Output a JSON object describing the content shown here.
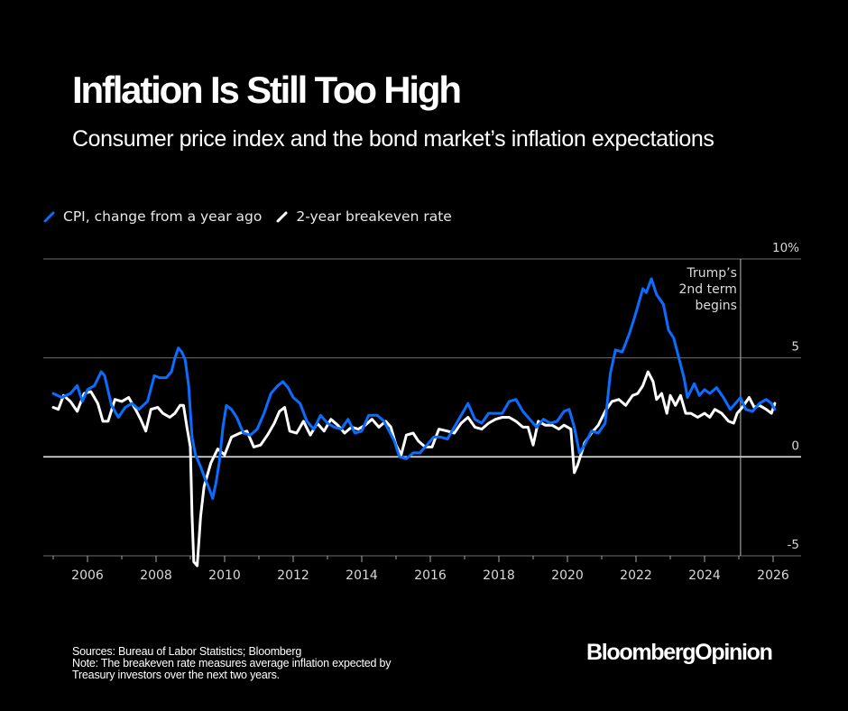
{
  "header": {
    "title": "Inflation Is Still Too High",
    "subtitle": "Consumer price index and the bond market’s inflation expectations"
  },
  "legend": [
    {
      "label": "CPI, change from a year ago",
      "color": "#0a6dff",
      "icon": "blue-line-swatch"
    },
    {
      "label": "2-year breakeven rate",
      "color": "#ffffff",
      "icon": "white-line-swatch"
    }
  ],
  "footer": {
    "sources": "Sources: Bureau of Labor Statistics; Bloomberg",
    "note_line1": "Note: The breakeven rate measures average inflation expected by",
    "note_line2": "Treasury investors over the next two years.",
    "brand": "BloombergOpinion"
  },
  "chart_data": {
    "type": "line",
    "title": "Inflation Is Still Too High",
    "subtitle": "Consumer price index and the bond market’s inflation expectations",
    "xlabel": "",
    "ylabel": "%",
    "xlim": [
      2005.0,
      2026.8
    ],
    "ylim": [
      -5,
      10
    ],
    "y_ticks": [
      10,
      5,
      0,
      -5
    ],
    "y_tick_labels": [
      "10%",
      "5",
      "0",
      "-5"
    ],
    "x_ticks": [
      2006,
      2008,
      2010,
      2012,
      2014,
      2016,
      2018,
      2020,
      2022,
      2024,
      2026
    ],
    "x_tick_labels": [
      "2006",
      "2008",
      "2010",
      "2012",
      "2014",
      "2016",
      "2018",
      "2020",
      "2022",
      "2024",
      "2026"
    ],
    "grid": true,
    "legend_position": "top-left",
    "annotation": {
      "text_lines": [
        "Trump’s",
        "2nd term",
        "begins"
      ],
      "x": 2025.05
    },
    "series": [
      {
        "name": "CPI, change from a year ago",
        "color": "#0a6dff",
        "points": [
          [
            2005.0,
            3.2
          ],
          [
            2005.25,
            3.0
          ],
          [
            2005.5,
            3.2
          ],
          [
            2005.7,
            3.6
          ],
          [
            2005.85,
            2.8
          ],
          [
            2006.0,
            3.4
          ],
          [
            2006.2,
            3.6
          ],
          [
            2006.4,
            4.3
          ],
          [
            2006.5,
            4.1
          ],
          [
            2006.7,
            2.6
          ],
          [
            2006.9,
            2.0
          ],
          [
            2007.1,
            2.5
          ],
          [
            2007.3,
            2.7
          ],
          [
            2007.5,
            2.4
          ],
          [
            2007.75,
            2.8
          ],
          [
            2007.95,
            4.1
          ],
          [
            2008.1,
            4.0
          ],
          [
            2008.3,
            4.0
          ],
          [
            2008.45,
            4.3
          ],
          [
            2008.55,
            5.0
          ],
          [
            2008.65,
            5.5
          ],
          [
            2008.75,
            5.3
          ],
          [
            2008.85,
            4.9
          ],
          [
            2008.95,
            3.6
          ],
          [
            2009.05,
            1.0
          ],
          [
            2009.15,
            0.1
          ],
          [
            2009.3,
            -0.5
          ],
          [
            2009.45,
            -1.2
          ],
          [
            2009.55,
            -1.6
          ],
          [
            2009.65,
            -2.1
          ],
          [
            2009.75,
            -1.3
          ],
          [
            2009.85,
            -0.2
          ],
          [
            2009.95,
            1.5
          ],
          [
            2010.05,
            2.6
          ],
          [
            2010.2,
            2.4
          ],
          [
            2010.35,
            2.0
          ],
          [
            2010.55,
            1.2
          ],
          [
            2010.75,
            1.1
          ],
          [
            2010.95,
            1.4
          ],
          [
            2011.15,
            2.2
          ],
          [
            2011.35,
            3.2
          ],
          [
            2011.55,
            3.6
          ],
          [
            2011.7,
            3.8
          ],
          [
            2011.85,
            3.5
          ],
          [
            2012.0,
            3.0
          ],
          [
            2012.2,
            2.7
          ],
          [
            2012.4,
            1.8
          ],
          [
            2012.6,
            1.4
          ],
          [
            2012.8,
            2.1
          ],
          [
            2013.0,
            1.7
          ],
          [
            2013.2,
            1.5
          ],
          [
            2013.4,
            1.4
          ],
          [
            2013.6,
            1.9
          ],
          [
            2013.8,
            1.2
          ],
          [
            2014.0,
            1.3
          ],
          [
            2014.2,
            2.1
          ],
          [
            2014.45,
            2.1
          ],
          [
            2014.65,
            1.8
          ],
          [
            2014.8,
            1.3
          ],
          [
            2014.95,
            0.8
          ],
          [
            2015.1,
            0.0
          ],
          [
            2015.3,
            -0.1
          ],
          [
            2015.5,
            0.2
          ],
          [
            2015.7,
            0.2
          ],
          [
            2015.9,
            0.6
          ],
          [
            2016.1,
            1.0
          ],
          [
            2016.3,
            1.0
          ],
          [
            2016.5,
            0.9
          ],
          [
            2016.7,
            1.5
          ],
          [
            2016.9,
            2.1
          ],
          [
            2017.1,
            2.7
          ],
          [
            2017.3,
            1.9
          ],
          [
            2017.5,
            1.7
          ],
          [
            2017.7,
            2.2
          ],
          [
            2017.9,
            2.2
          ],
          [
            2018.1,
            2.2
          ],
          [
            2018.3,
            2.8
          ],
          [
            2018.5,
            2.9
          ],
          [
            2018.7,
            2.3
          ],
          [
            2018.9,
            1.9
          ],
          [
            2019.1,
            1.5
          ],
          [
            2019.3,
            1.9
          ],
          [
            2019.5,
            1.7
          ],
          [
            2019.7,
            1.8
          ],
          [
            2019.9,
            2.3
          ],
          [
            2020.05,
            2.4
          ],
          [
            2020.2,
            1.5
          ],
          [
            2020.35,
            0.2
          ],
          [
            2020.5,
            0.6
          ],
          [
            2020.7,
            1.3
          ],
          [
            2020.9,
            1.2
          ],
          [
            2021.1,
            1.7
          ],
          [
            2021.25,
            4.2
          ],
          [
            2021.4,
            5.4
          ],
          [
            2021.6,
            5.3
          ],
          [
            2021.8,
            6.2
          ],
          [
            2021.95,
            7.0
          ],
          [
            2022.1,
            7.9
          ],
          [
            2022.2,
            8.5
          ],
          [
            2022.3,
            8.3
          ],
          [
            2022.45,
            9.0
          ],
          [
            2022.6,
            8.2
          ],
          [
            2022.8,
            7.7
          ],
          [
            2022.95,
            6.4
          ],
          [
            2023.1,
            6.0
          ],
          [
            2023.25,
            5.0
          ],
          [
            2023.4,
            4.0
          ],
          [
            2023.5,
            3.0
          ],
          [
            2023.7,
            3.7
          ],
          [
            2023.85,
            3.1
          ],
          [
            2024.0,
            3.4
          ],
          [
            2024.15,
            3.2
          ],
          [
            2024.35,
            3.5
          ],
          [
            2024.55,
            3.0
          ],
          [
            2024.75,
            2.4
          ],
          [
            2024.9,
            2.7
          ],
          [
            2025.05,
            3.0
          ],
          [
            2025.2,
            2.4
          ],
          [
            2025.4,
            2.3
          ],
          [
            2025.6,
            2.7
          ],
          [
            2025.8,
            2.9
          ],
          [
            2025.95,
            2.7
          ],
          [
            2026.05,
            2.4
          ]
        ]
      },
      {
        "name": "2-year breakeven rate",
        "color": "#ffffff",
        "points": [
          [
            2005.0,
            2.5
          ],
          [
            2005.15,
            2.4
          ],
          [
            2005.3,
            3.1
          ],
          [
            2005.5,
            2.8
          ],
          [
            2005.7,
            2.3
          ],
          [
            2005.9,
            3.2
          ],
          [
            2006.1,
            3.3
          ],
          [
            2006.3,
            2.7
          ],
          [
            2006.45,
            1.8
          ],
          [
            2006.6,
            1.8
          ],
          [
            2006.8,
            2.9
          ],
          [
            2007.0,
            2.8
          ],
          [
            2007.2,
            3.0
          ],
          [
            2007.4,
            2.4
          ],
          [
            2007.55,
            1.9
          ],
          [
            2007.7,
            1.3
          ],
          [
            2007.85,
            2.4
          ],
          [
            2008.05,
            2.5
          ],
          [
            2008.2,
            2.2
          ],
          [
            2008.4,
            2.0
          ],
          [
            2008.55,
            2.2
          ],
          [
            2008.7,
            2.6
          ],
          [
            2008.8,
            2.6
          ],
          [
            2008.9,
            1.5
          ],
          [
            2009.0,
            0.5
          ],
          [
            2009.05,
            -3.0
          ],
          [
            2009.1,
            -5.3
          ],
          [
            2009.2,
            -5.5
          ],
          [
            2009.3,
            -3.0
          ],
          [
            2009.4,
            -1.5
          ],
          [
            2009.6,
            -0.3
          ],
          [
            2009.8,
            0.4
          ],
          [
            2010.0,
            0.1
          ],
          [
            2010.2,
            1.0
          ],
          [
            2010.45,
            1.2
          ],
          [
            2010.65,
            1.3
          ],
          [
            2010.85,
            0.5
          ],
          [
            2011.05,
            0.6
          ],
          [
            2011.25,
            1.1
          ],
          [
            2011.45,
            1.7
          ],
          [
            2011.6,
            2.3
          ],
          [
            2011.75,
            2.5
          ],
          [
            2011.9,
            1.3
          ],
          [
            2012.1,
            1.2
          ],
          [
            2012.3,
            1.8
          ],
          [
            2012.5,
            1.1
          ],
          [
            2012.7,
            1.7
          ],
          [
            2012.9,
            1.3
          ],
          [
            2013.1,
            1.9
          ],
          [
            2013.3,
            1.6
          ],
          [
            2013.5,
            1.2
          ],
          [
            2013.7,
            1.5
          ],
          [
            2013.9,
            1.4
          ],
          [
            2014.1,
            1.6
          ],
          [
            2014.3,
            1.9
          ],
          [
            2014.5,
            1.5
          ],
          [
            2014.7,
            1.8
          ],
          [
            2014.85,
            1.5
          ],
          [
            2015.0,
            0.6
          ],
          [
            2015.15,
            0.1
          ],
          [
            2015.3,
            1.1
          ],
          [
            2015.5,
            1.2
          ],
          [
            2015.65,
            0.8
          ],
          [
            2015.85,
            0.5
          ],
          [
            2016.05,
            0.5
          ],
          [
            2016.25,
            1.4
          ],
          [
            2016.5,
            1.3
          ],
          [
            2016.7,
            1.2
          ],
          [
            2016.9,
            1.7
          ],
          [
            2017.1,
            2.0
          ],
          [
            2017.3,
            1.5
          ],
          [
            2017.5,
            1.4
          ],
          [
            2017.7,
            1.7
          ],
          [
            2017.9,
            1.9
          ],
          [
            2018.1,
            2.0
          ],
          [
            2018.3,
            2.0
          ],
          [
            2018.5,
            1.8
          ],
          [
            2018.7,
            1.5
          ],
          [
            2018.85,
            1.5
          ],
          [
            2019.0,
            0.6
          ],
          [
            2019.15,
            1.8
          ],
          [
            2019.35,
            1.6
          ],
          [
            2019.55,
            1.6
          ],
          [
            2019.75,
            1.4
          ],
          [
            2019.9,
            1.6
          ],
          [
            2020.1,
            1.4
          ],
          [
            2020.2,
            -0.8
          ],
          [
            2020.3,
            -0.4
          ],
          [
            2020.5,
            0.7
          ],
          [
            2020.7,
            1.2
          ],
          [
            2020.9,
            1.6
          ],
          [
            2021.1,
            2.3
          ],
          [
            2021.3,
            2.8
          ],
          [
            2021.5,
            2.9
          ],
          [
            2021.7,
            2.6
          ],
          [
            2021.9,
            3.1
          ],
          [
            2022.05,
            3.2
          ],
          [
            2022.2,
            3.6
          ],
          [
            2022.35,
            4.3
          ],
          [
            2022.5,
            3.8
          ],
          [
            2022.6,
            2.9
          ],
          [
            2022.75,
            3.2
          ],
          [
            2022.9,
            2.2
          ],
          [
            2023.0,
            3.1
          ],
          [
            2023.15,
            2.6
          ],
          [
            2023.3,
            3.1
          ],
          [
            2023.45,
            2.2
          ],
          [
            2023.6,
            2.2
          ],
          [
            2023.8,
            2.0
          ],
          [
            2024.0,
            2.2
          ],
          [
            2024.15,
            2.0
          ],
          [
            2024.3,
            2.4
          ],
          [
            2024.5,
            2.2
          ],
          [
            2024.7,
            1.8
          ],
          [
            2024.85,
            1.7
          ],
          [
            2024.95,
            2.2
          ],
          [
            2025.1,
            2.5
          ],
          [
            2025.3,
            3.0
          ],
          [
            2025.45,
            2.5
          ],
          [
            2025.6,
            2.6
          ],
          [
            2025.8,
            2.4
          ],
          [
            2025.95,
            2.2
          ],
          [
            2026.05,
            2.7
          ]
        ]
      }
    ]
  }
}
